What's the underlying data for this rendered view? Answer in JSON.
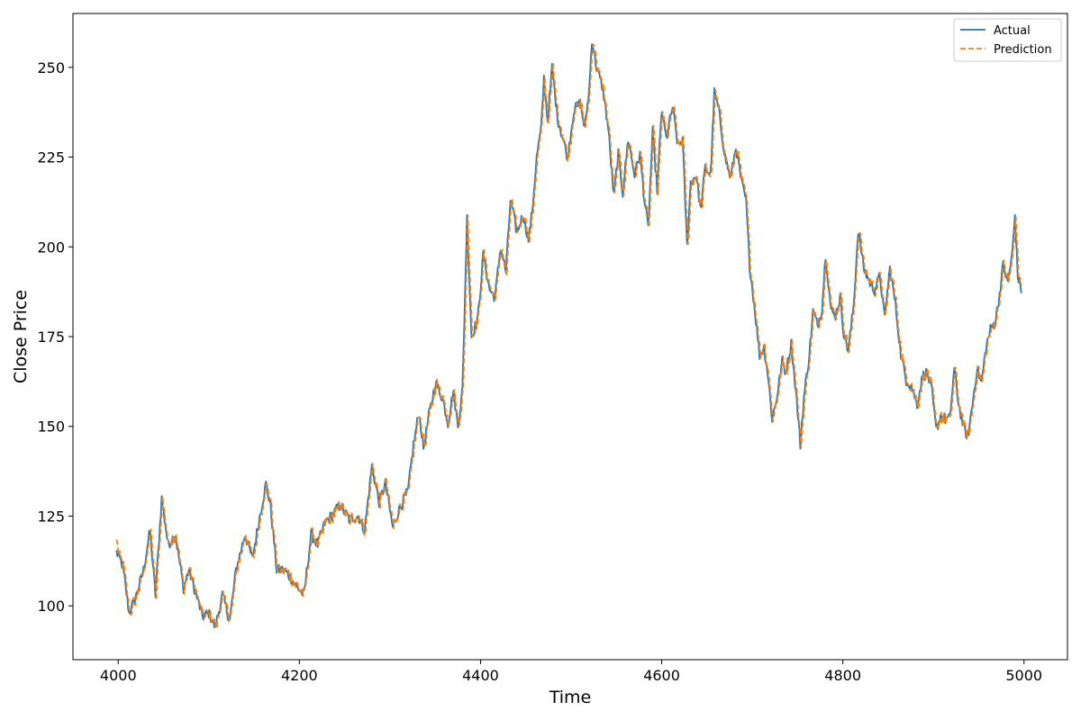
{
  "chart_data": {
    "type": "line",
    "title": "",
    "xlabel": "Time",
    "ylabel": "Close Price",
    "xlim": [
      3950,
      5048
    ],
    "ylim": [
      85,
      265
    ],
    "x_ticks": [
      4000,
      4200,
      4400,
      4600,
      4800,
      5000
    ],
    "y_ticks": [
      100,
      125,
      150,
      175,
      200,
      225,
      250
    ],
    "grid": false,
    "legend": "top-right",
    "series": [
      {
        "name": "Actual",
        "color": "#1f77b4",
        "style": "solid",
        "x_start": 3998,
        "x_step": 1,
        "anchors": [
          [
            3998,
            115
          ],
          [
            4005,
            111
          ],
          [
            4012,
            98
          ],
          [
            4020,
            103
          ],
          [
            4028,
            110
          ],
          [
            4035,
            121
          ],
          [
            4041,
            103
          ],
          [
            4048,
            130
          ],
          [
            4055,
            117
          ],
          [
            4063,
            120
          ],
          [
            4072,
            105
          ],
          [
            4078,
            110
          ],
          [
            4085,
            104
          ],
          [
            4093,
            97
          ],
          [
            4100,
            98
          ],
          [
            4107,
            94
          ],
          [
            4115,
            103
          ],
          [
            4123,
            96
          ],
          [
            4130,
            110
          ],
          [
            4140,
            120
          ],
          [
            4148,
            113
          ],
          [
            4157,
            126
          ],
          [
            4163,
            134
          ],
          [
            4168,
            128
          ],
          [
            4175,
            110
          ],
          [
            4183,
            110
          ],
          [
            4190,
            108
          ],
          [
            4198,
            105
          ],
          [
            4205,
            103
          ],
          [
            4213,
            120
          ],
          [
            4220,
            117
          ],
          [
            4228,
            123
          ],
          [
            4235,
            125
          ],
          [
            4245,
            128
          ],
          [
            4255,
            124
          ],
          [
            4265,
            125
          ],
          [
            4272,
            121
          ],
          [
            4280,
            139
          ],
          [
            4288,
            129
          ],
          [
            4295,
            134
          ],
          [
            4303,
            122
          ],
          [
            4312,
            128
          ],
          [
            4320,
            132
          ],
          [
            4326,
            145
          ],
          [
            4332,
            154
          ],
          [
            4337,
            144
          ],
          [
            4343,
            153
          ],
          [
            4350,
            162
          ],
          [
            4358,
            158
          ],
          [
            4364,
            151
          ],
          [
            4370,
            160
          ],
          [
            4375,
            150
          ],
          [
            4380,
            160
          ],
          [
            4385,
            208
          ],
          [
            4390,
            175
          ],
          [
            4397,
            180
          ],
          [
            4403,
            198
          ],
          [
            4410,
            188
          ],
          [
            4416,
            186
          ],
          [
            4422,
            200
          ],
          [
            4428,
            193
          ],
          [
            4433,
            213
          ],
          [
            4440,
            204
          ],
          [
            4447,
            209
          ],
          [
            4453,
            202
          ],
          [
            4457,
            210
          ],
          [
            4462,
            225
          ],
          [
            4467,
            233
          ],
          [
            4470,
            247
          ],
          [
            4474,
            235
          ],
          [
            4479,
            250
          ],
          [
            4485,
            236
          ],
          [
            4491,
            230
          ],
          [
            4496,
            225
          ],
          [
            4503,
            238
          ],
          [
            4510,
            240
          ],
          [
            4515,
            233
          ],
          [
            4520,
            244
          ],
          [
            4523,
            258
          ],
          [
            4528,
            250
          ],
          [
            4535,
            244
          ],
          [
            4541,
            233
          ],
          [
            4547,
            214
          ],
          [
            4552,
            226
          ],
          [
            4557,
            215
          ],
          [
            4563,
            230
          ],
          [
            4570,
            220
          ],
          [
            4576,
            226
          ],
          [
            4581,
            213
          ],
          [
            4585,
            205
          ],
          [
            4590,
            232
          ],
          [
            4595,
            216
          ],
          [
            4600,
            238
          ],
          [
            4605,
            230
          ],
          [
            4612,
            239
          ],
          [
            4618,
            228
          ],
          [
            4623,
            230
          ],
          [
            4628,
            200
          ],
          [
            4632,
            218
          ],
          [
            4638,
            220
          ],
          [
            4643,
            210
          ],
          [
            4648,
            222
          ],
          [
            4654,
            220
          ],
          [
            4658,
            243
          ],
          [
            4663,
            238
          ],
          [
            4670,
            225
          ],
          [
            4676,
            219
          ],
          [
            4682,
            228
          ],
          [
            4688,
            218
          ],
          [
            4693,
            213
          ],
          [
            4697,
            195
          ],
          [
            4703,
            182
          ],
          [
            4708,
            170
          ],
          [
            4713,
            172
          ],
          [
            4717,
            165
          ],
          [
            4722,
            152
          ],
          [
            4727,
            158
          ],
          [
            4733,
            168
          ],
          [
            4737,
            165
          ],
          [
            4743,
            173
          ],
          [
            4748,
            160
          ],
          [
            4753,
            145
          ],
          [
            4757,
            158
          ],
          [
            4763,
            170
          ],
          [
            4767,
            182
          ],
          [
            4772,
            178
          ],
          [
            4777,
            183
          ],
          [
            4781,
            198
          ],
          [
            4787,
            182
          ],
          [
            4792,
            181
          ],
          [
            4797,
            186
          ],
          [
            4801,
            176
          ],
          [
            4806,
            171
          ],
          [
            4812,
            184
          ],
          [
            4817,
            205
          ],
          [
            4823,
            194
          ],
          [
            4830,
            190
          ],
          [
            4835,
            188
          ],
          [
            4841,
            192
          ],
          [
            4846,
            180
          ],
          [
            4852,
            194
          ],
          [
            4858,
            184
          ],
          [
            4864,
            170
          ],
          [
            4870,
            163
          ],
          [
            4876,
            161
          ],
          [
            4882,
            156
          ],
          [
            4888,
            164
          ],
          [
            4893,
            165
          ],
          [
            4898,
            160
          ],
          [
            4903,
            149
          ],
          [
            4908,
            153
          ],
          [
            4913,
            152
          ],
          [
            4918,
            152
          ],
          [
            4923,
            166
          ],
          [
            4928,
            156
          ],
          [
            4933,
            150
          ],
          [
            4938,
            147
          ],
          [
            4943,
            156
          ],
          [
            4948,
            166
          ],
          [
            4953,
            162
          ],
          [
            4958,
            172
          ],
          [
            4963,
            177
          ],
          [
            4968,
            179
          ],
          [
            4972,
            185
          ],
          [
            4977,
            195
          ],
          [
            4982,
            190
          ],
          [
            4987,
            198
          ],
          [
            4990,
            209
          ],
          [
            4993,
            192
          ],
          [
            4997,
            188
          ]
        ]
      },
      {
        "name": "Prediction",
        "color": "#ff7f0e",
        "style": "dashed",
        "x_start": 3998,
        "x_step": 1,
        "based_on": "Actual",
        "lag": 1,
        "first_value": 118.5
      }
    ]
  }
}
